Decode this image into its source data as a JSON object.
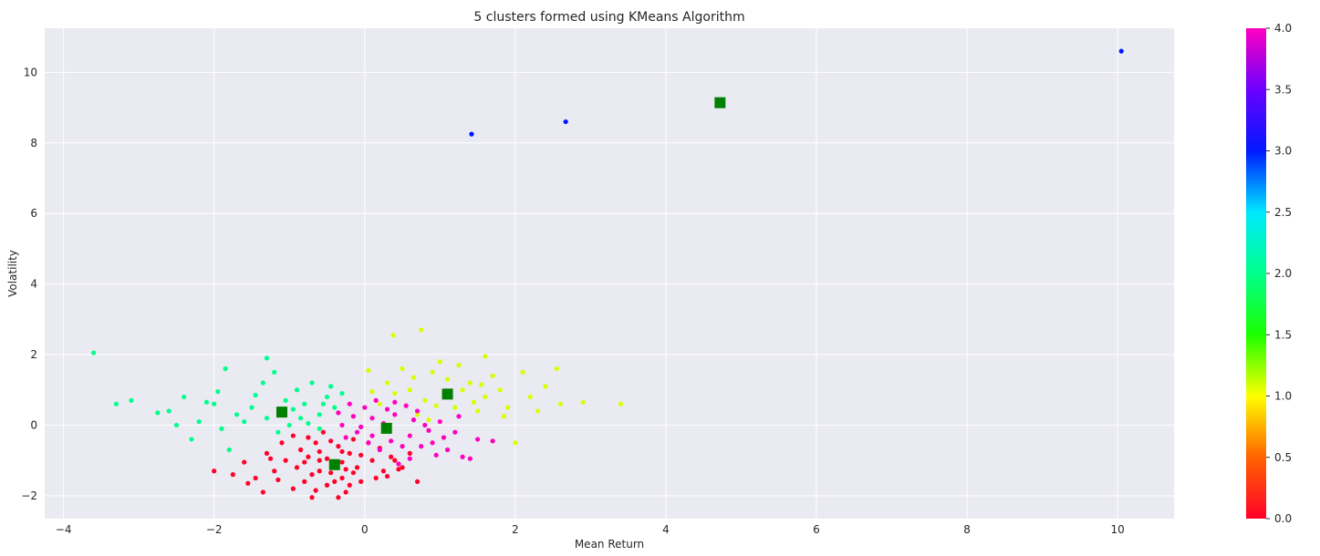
{
  "chart_data": {
    "type": "scatter",
    "title": "5 clusters formed using KMeans Algorithm",
    "xlabel": "Mean Return",
    "ylabel": "Volatility",
    "xlim": [
      -4.25,
      10.75
    ],
    "ylim": [
      -2.65,
      11.25
    ],
    "xticks": [
      -4,
      -2,
      0,
      2,
      4,
      6,
      8,
      10
    ],
    "yticks": [
      -2,
      0,
      2,
      4,
      6,
      8,
      10
    ],
    "grid": true,
    "background": "#eaeaf2",
    "colormap": "gist_rainbow",
    "colorbar": {
      "range": [
        0.0,
        4.0
      ],
      "ticks": [
        "0.0",
        "0.5",
        "1.0",
        "1.5",
        "2.0",
        "2.5",
        "3.0",
        "3.5",
        "4.0"
      ]
    },
    "cluster_colors": {
      "0": "#ff0029",
      "1": "#d8ff00",
      "2": "#00ff8c",
      "3": "#0015ff",
      "4": "#ff00bd"
    },
    "centroid_color": "#008000",
    "series": [
      {
        "cluster": 0,
        "points": [
          [
            -0.42,
            -1.1
          ],
          [
            -0.6,
            -1.3
          ],
          [
            -0.3,
            -1.5
          ],
          [
            -0.75,
            -0.9
          ],
          [
            -0.2,
            -0.8
          ],
          [
            -0.9,
            -1.2
          ],
          [
            -0.5,
            -1.7
          ],
          [
            -0.1,
            -1.2
          ],
          [
            -1.05,
            -1.0
          ],
          [
            -0.35,
            -0.6
          ],
          [
            -0.65,
            -0.5
          ],
          [
            -0.25,
            -1.9
          ],
          [
            -0.8,
            -1.6
          ],
          [
            0.1,
            -1.0
          ],
          [
            -1.2,
            -1.3
          ],
          [
            -0.45,
            -1.35
          ],
          [
            0.25,
            -1.3
          ],
          [
            -0.7,
            -2.05
          ],
          [
            -1.3,
            -0.8
          ],
          [
            -0.15,
            -0.4
          ],
          [
            0.35,
            -0.9
          ],
          [
            -0.55,
            -0.2
          ],
          [
            -0.95,
            -1.8
          ],
          [
            -1.45,
            -1.5
          ],
          [
            0.5,
            -1.2
          ],
          [
            -0.05,
            -1.6
          ],
          [
            -0.85,
            -0.7
          ],
          [
            -1.1,
            -0.5
          ],
          [
            0.05,
            -0.5
          ],
          [
            -0.6,
            -1.0
          ],
          [
            -0.3,
            -1.05
          ],
          [
            -0.15,
            -1.35
          ],
          [
            -0.5,
            -0.95
          ],
          [
            -0.7,
            -1.4
          ],
          [
            -1.6,
            -1.05
          ],
          [
            -2.0,
            -1.3
          ],
          [
            -1.35,
            -1.9
          ],
          [
            0.7,
            -1.6
          ],
          [
            0.4,
            -1.0
          ],
          [
            -0.35,
            -2.05
          ],
          [
            0.2,
            -0.65
          ],
          [
            -0.95,
            -0.3
          ],
          [
            -1.25,
            -0.95
          ],
          [
            -0.2,
            -1.7
          ],
          [
            0.6,
            -0.8
          ],
          [
            -0.6,
            -0.75
          ],
          [
            -0.45,
            -0.45
          ],
          [
            -0.8,
            -1.05
          ],
          [
            -0.05,
            -0.85
          ],
          [
            -1.75,
            -1.4
          ],
          [
            0.15,
            -1.5
          ],
          [
            -0.4,
            -1.6
          ],
          [
            -1.55,
            -1.65
          ],
          [
            -0.25,
            -1.25
          ],
          [
            0.3,
            -1.45
          ],
          [
            -1.15,
            -1.55
          ],
          [
            -0.75,
            -0.35
          ],
          [
            -0.65,
            -1.85
          ],
          [
            0.45,
            -1.25
          ],
          [
            -0.3,
            -0.75
          ]
        ]
      },
      {
        "cluster": 1,
        "points": [
          [
            1.1,
            0.9
          ],
          [
            0.8,
            0.7
          ],
          [
            1.4,
            1.2
          ],
          [
            0.6,
            1.0
          ],
          [
            1.2,
            0.5
          ],
          [
            1.6,
            0.8
          ],
          [
            0.9,
            1.5
          ],
          [
            0.4,
            0.9
          ],
          [
            1.8,
            1.0
          ],
          [
            0.7,
            0.3
          ],
          [
            2.2,
            0.8
          ],
          [
            1.0,
            1.8
          ],
          [
            1.5,
            0.4
          ],
          [
            0.3,
            1.2
          ],
          [
            2.4,
            1.1
          ],
          [
            0.5,
            1.6
          ],
          [
            1.9,
            0.5
          ],
          [
            1.3,
            1.0
          ],
          [
            0.95,
            0.55
          ],
          [
            2.0,
            -0.5
          ],
          [
            2.6,
            0.6
          ],
          [
            3.4,
            0.6
          ],
          [
            0.75,
            2.7
          ],
          [
            0.38,
            2.55
          ],
          [
            1.6,
            1.95
          ],
          [
            2.9,
            0.65
          ],
          [
            1.1,
            1.3
          ],
          [
            0.2,
            0.6
          ],
          [
            1.7,
            1.4
          ],
          [
            2.3,
            0.4
          ],
          [
            0.65,
            1.35
          ],
          [
            1.45,
            0.65
          ],
          [
            0.05,
            1.55
          ],
          [
            2.55,
            1.6
          ],
          [
            1.25,
            1.7
          ],
          [
            1.85,
            0.25
          ],
          [
            0.85,
            0.15
          ],
          [
            2.1,
            1.5
          ],
          [
            0.1,
            0.95
          ],
          [
            1.55,
            1.15
          ]
        ]
      },
      {
        "cluster": 2,
        "points": [
          [
            -1.1,
            0.4
          ],
          [
            -0.8,
            0.6
          ],
          [
            -1.3,
            0.2
          ],
          [
            -0.6,
            0.3
          ],
          [
            -0.9,
            1.0
          ],
          [
            -1.5,
            0.5
          ],
          [
            -0.5,
            0.8
          ],
          [
            -1.0,
            0.0
          ],
          [
            -1.7,
            0.3
          ],
          [
            -2.0,
            0.6
          ],
          [
            -2.4,
            0.8
          ],
          [
            -2.6,
            0.4
          ],
          [
            -3.1,
            0.7
          ],
          [
            -3.6,
            2.05
          ],
          [
            -3.3,
            0.6
          ],
          [
            -1.85,
            1.6
          ],
          [
            -1.3,
            1.9
          ],
          [
            -0.7,
            1.2
          ],
          [
            -1.2,
            1.5
          ],
          [
            -0.4,
            0.5
          ],
          [
            -1.9,
            -0.1
          ],
          [
            -2.2,
            0.1
          ],
          [
            -0.75,
            0.05
          ],
          [
            -1.45,
            0.85
          ],
          [
            -0.95,
            0.45
          ],
          [
            -0.3,
            0.9
          ],
          [
            -2.5,
            0.0
          ],
          [
            -1.8,
            -0.7
          ],
          [
            -2.3,
            -0.4
          ],
          [
            -1.6,
            0.1
          ],
          [
            -0.6,
            -0.1
          ],
          [
            -1.05,
            0.7
          ],
          [
            -0.85,
            0.2
          ],
          [
            -2.1,
            0.65
          ],
          [
            -1.35,
            1.2
          ],
          [
            -0.45,
            1.1
          ],
          [
            -2.75,
            0.35
          ],
          [
            -1.15,
            -0.2
          ],
          [
            -0.55,
            0.6
          ],
          [
            -1.95,
            0.95
          ]
        ]
      },
      {
        "cluster": 3,
        "points": [
          [
            1.42,
            8.25
          ],
          [
            2.67,
            8.6
          ],
          [
            10.05,
            10.6
          ]
        ]
      },
      {
        "cluster": 4,
        "points": [
          [
            0.3,
            -0.1
          ],
          [
            0.1,
            0.2
          ],
          [
            0.6,
            -0.3
          ],
          [
            -0.1,
            -0.2
          ],
          [
            0.4,
            0.3
          ],
          [
            0.8,
            0.0
          ],
          [
            0.0,
            0.5
          ],
          [
            0.5,
            -0.6
          ],
          [
            -0.3,
            0.0
          ],
          [
            0.9,
            -0.5
          ],
          [
            1.2,
            -0.2
          ],
          [
            0.2,
            -0.7
          ],
          [
            -0.2,
            0.6
          ],
          [
            0.7,
            0.4
          ],
          [
            1.5,
            -0.4
          ],
          [
            1.3,
            -0.9
          ],
          [
            0.35,
            -0.45
          ],
          [
            -0.05,
            -0.05
          ],
          [
            0.65,
            0.15
          ],
          [
            1.0,
            0.1
          ],
          [
            0.15,
            0.7
          ],
          [
            0.45,
            -1.1
          ],
          [
            1.1,
            -0.7
          ],
          [
            -0.35,
            0.35
          ],
          [
            0.25,
            0.05
          ],
          [
            0.85,
            -0.15
          ],
          [
            1.4,
            -0.95
          ],
          [
            0.55,
            0.55
          ],
          [
            -0.15,
            0.25
          ],
          [
            1.7,
            -0.45
          ],
          [
            0.05,
            -0.5
          ],
          [
            0.95,
            -0.85
          ],
          [
            0.3,
            0.45
          ],
          [
            0.75,
            -0.6
          ],
          [
            -0.25,
            -0.35
          ],
          [
            1.25,
            0.25
          ],
          [
            0.6,
            -0.95
          ],
          [
            0.1,
            -0.3
          ],
          [
            1.05,
            -0.35
          ],
          [
            0.4,
            0.65
          ]
        ]
      }
    ],
    "centroids": [
      [
        -0.4,
        -1.12
      ],
      [
        1.1,
        0.88
      ],
      [
        -1.1,
        0.37
      ],
      [
        4.72,
        9.14
      ],
      [
        0.29,
        -0.09
      ]
    ]
  }
}
